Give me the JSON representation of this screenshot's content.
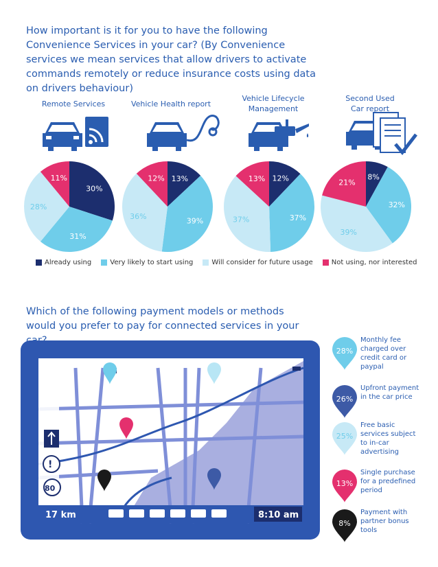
{
  "question1": "How important is it for you to have the following Convenience Services in your car? (By Convenience services we mean services that allow drivers to activate commands remotely or reduce insurance costs using data on drivers behaviour)",
  "question2": "Which of the following payment models or methods would you prefer to pay for connected services in your car?",
  "colors": {
    "already": "#1c2e6e",
    "very_likely": "#6fcdea",
    "consider": "#c7e9f6",
    "not_using": "#e4306e",
    "title": "#2a5db0",
    "tablet_frame": "#2e57b0"
  },
  "chart_data": [
    {
      "type": "pie",
      "title": "Remote Services",
      "series_order": [
        "Already using",
        "Very likely to start using",
        "Will consider for future usage",
        "Not using, nor interested"
      ],
      "values": [
        30,
        31,
        28,
        11
      ],
      "labels": [
        "30%",
        "31%",
        "28%",
        "11%"
      ]
    },
    {
      "type": "pie",
      "title": "Vehicle Health report",
      "series_order": [
        "Already using",
        "Very likely to start using",
        "Will consider for future usage",
        "Not using, nor interested"
      ],
      "values": [
        13,
        39,
        36,
        12
      ],
      "labels": [
        "13%",
        "39%",
        "36%",
        "12%"
      ]
    },
    {
      "type": "pie",
      "title": "Vehicle Lifecycle Management",
      "series_order": [
        "Already using",
        "Very likely to start using",
        "Will consider for future usage",
        "Not using, nor interested"
      ],
      "values": [
        12,
        37,
        37,
        13
      ],
      "labels": [
        "12%",
        "37%",
        "37%",
        "13%"
      ]
    },
    {
      "type": "pie",
      "title": "Second Used Car report",
      "series_order": [
        "Already using",
        "Very likely to start using",
        "Will consider for future usage",
        "Not using, nor interested"
      ],
      "values": [
        8,
        32,
        39,
        21
      ],
      "labels": [
        "8%",
        "32%",
        "39%",
        "21%"
      ]
    },
    {
      "type": "table",
      "title": "Payment models",
      "rows": [
        {
          "value": 28,
          "label": "28%",
          "text": "Monthly fee charged over credit card or paypal",
          "color": "#6fcdea"
        },
        {
          "value": 26,
          "label": "26%",
          "text": "Upfront payment in the car price",
          "color": "#3d5aa6"
        },
        {
          "value": 25,
          "label": "25%",
          "text": "Free basic services subject to in-car advertising",
          "color": "#c7e9f6"
        },
        {
          "value": 13,
          "label": "13%",
          "text": "Single purchase for a predefined period",
          "color": "#e4306e"
        },
        {
          "value": 8,
          "label": "8%",
          "text": "Payment with partner bonus tools",
          "color": "#1a1a1a"
        }
      ]
    }
  ],
  "legend": [
    {
      "label": "Already using",
      "color": "#1c2e6e"
    },
    {
      "label": "Very likely to start using",
      "color": "#6fcdea"
    },
    {
      "label": "Will consider for future usage",
      "color": "#c7e9f6"
    },
    {
      "label": "Not using, nor interested",
      "color": "#e4306e"
    }
  ],
  "pie_titles": {
    "p0": "Remote Services",
    "p1": "Vehicle Health report",
    "p2a": "Vehicle Lifecycle",
    "p2b": "Management",
    "p3a": "Second Used",
    "p3b": "Car report"
  },
  "tablet": {
    "distance": "17 km",
    "time": "8:10 am",
    "speed_limit": "80",
    "warning": "!"
  }
}
